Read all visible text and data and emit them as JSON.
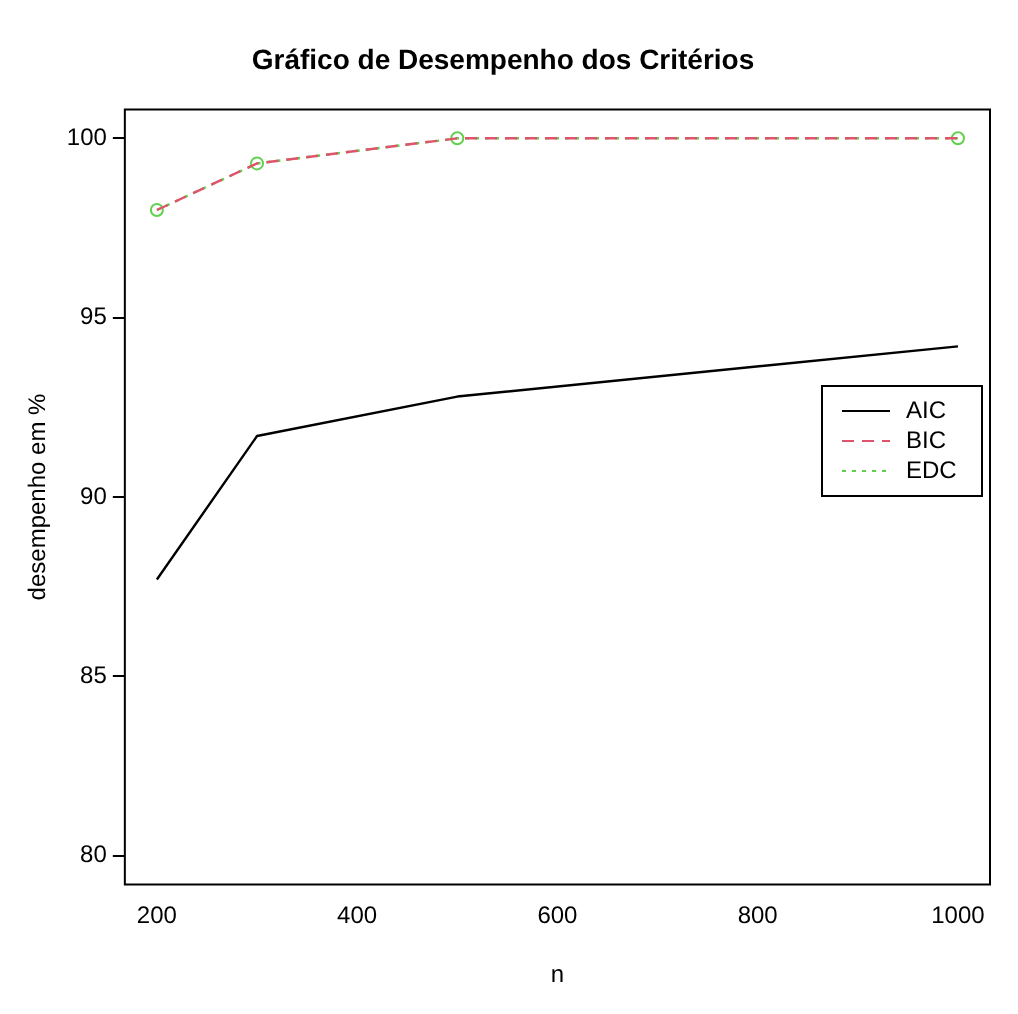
{
  "chart_data": {
    "type": "line",
    "title": "Gráfico de Desempenho dos Critérios",
    "xlabel": "n",
    "ylabel": "desempenho em %",
    "x": [
      200,
      300,
      500,
      1000
    ],
    "series": [
      {
        "name": "AIC",
        "color": "#000000",
        "values": [
          87.7,
          91.7,
          92.8,
          94.2
        ],
        "line_style": "solid",
        "marker": "none"
      },
      {
        "name": "BIC",
        "color": "#df536b",
        "values": [
          98.0,
          99.3,
          100,
          100
        ],
        "line_style": "dashed",
        "marker": "none"
      },
      {
        "name": "EDC",
        "color": "#61d04f",
        "values": [
          98.0,
          99.3,
          100,
          100
        ],
        "line_style": "dotted",
        "marker": "circle"
      }
    ],
    "xlim": [
      168,
      1032
    ],
    "ylim": [
      79.2,
      100.8
    ],
    "xticks": [
      200,
      400,
      600,
      800,
      1000
    ],
    "yticks": [
      80,
      85,
      90,
      95,
      100
    ],
    "grid": false,
    "legend": "right"
  }
}
